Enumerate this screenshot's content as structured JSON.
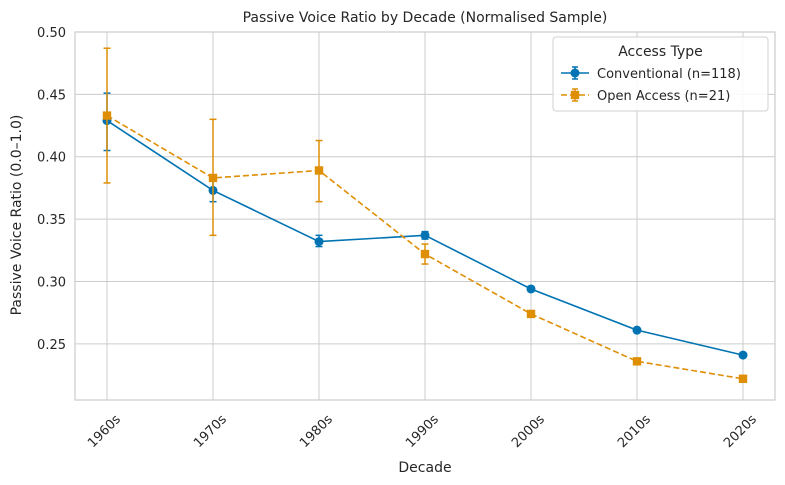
{
  "chart_data": {
    "type": "line",
    "title": "Passive Voice Ratio by Decade (Normalised Sample)",
    "xlabel": "Decade",
    "ylabel": "Passive Voice Ratio (0.0–1.0)",
    "categories": [
      "1960s",
      "1970s",
      "1980s",
      "1990s",
      "2000s",
      "2010s",
      "2020s"
    ],
    "ylim": [
      0.205,
      0.5
    ],
    "yticks": [
      0.25,
      0.3,
      0.35,
      0.4,
      0.45,
      0.5
    ],
    "ytick_labels": [
      "0.25",
      "0.30",
      "0.35",
      "0.40",
      "0.45",
      "0.50"
    ],
    "grid": true,
    "legend": {
      "title": "Access Type",
      "placement": "top-right"
    },
    "series": [
      {
        "name": "Conventional (n=118)",
        "color": "#0173b2",
        "marker": "circle",
        "linestyle": "solid",
        "values": [
          0.429,
          0.373,
          0.332,
          0.337,
          0.294,
          0.261,
          0.241
        ],
        "err_low": [
          0.405,
          0.364,
          0.328,
          0.334,
          0.292,
          0.26,
          0.24
        ],
        "err_high": [
          0.451,
          0.382,
          0.337,
          0.34,
          0.296,
          0.262,
          0.242
        ]
      },
      {
        "name": "Open Access (n=21)",
        "color": "#de8f05",
        "marker": "square",
        "linestyle": "dashed",
        "values": [
          0.433,
          0.383,
          0.389,
          0.322,
          0.274,
          0.236,
          0.222
        ],
        "err_low": [
          0.379,
          0.337,
          0.364,
          0.314,
          0.272,
          0.235,
          0.221
        ],
        "err_high": [
          0.487,
          0.43,
          0.413,
          0.33,
          0.276,
          0.237,
          0.223
        ]
      }
    ]
  }
}
